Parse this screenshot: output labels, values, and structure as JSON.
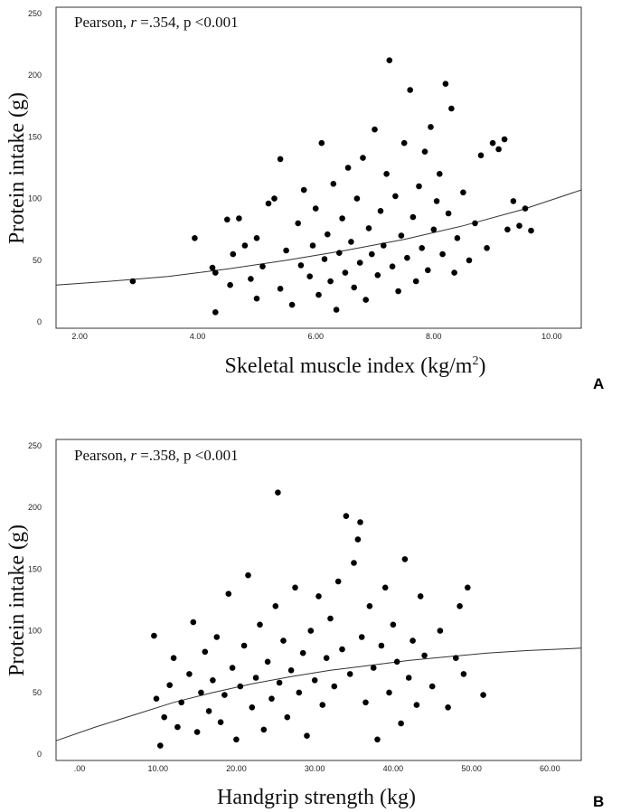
{
  "panels": [
    {
      "label": "A",
      "annotation": {
        "prefix": "Pearson, ",
        "r_symbol": "r",
        "value": " =.354, p <0.001"
      },
      "xlabel": "Skeletal muscle index (kg/m",
      "xlabel_sup": "2",
      "xlabel_suffix": ")",
      "ylabel": "Protein intake (g)"
    },
    {
      "label": "B",
      "annotation": {
        "prefix": "Pearson, ",
        "r_symbol": "r",
        "value": " =.358, p <0.001"
      },
      "xlabel": "Handgrip strength (kg)",
      "xlabel_sup": "",
      "xlabel_suffix": "",
      "ylabel": "Protein intake (g)"
    }
  ],
  "chart_data": [
    {
      "type": "scatter",
      "title": "",
      "xlabel": "Skeletal muscle index (kg/m2)",
      "ylabel": "Protein intake (g)",
      "xlim": [
        1.6,
        10.5
      ],
      "ylim": [
        -5,
        255
      ],
      "xticks": [
        "2.00",
        "4.00",
        "6.00",
        "8.00",
        "10.00"
      ],
      "xtick_values": [
        2,
        4,
        6,
        8,
        10
      ],
      "yticks": [
        "0",
        "50",
        "100",
        "150",
        "200",
        "250"
      ],
      "ytick_values": [
        0,
        50,
        100,
        150,
        200,
        250
      ],
      "correlation": {
        "method": "Pearson",
        "r": 0.354,
        "p": "<0.001"
      },
      "fit_line": {
        "x": [
          1.6,
          2.5,
          3.5,
          4.5,
          5.5,
          6.5,
          7.5,
          8.5,
          9.5,
          10.5
        ],
        "y": [
          30,
          33,
          37,
          43,
          50,
          58,
          67,
          78,
          91,
          107
        ]
      },
      "points": [
        {
          "x": 2.9,
          "y": 33
        },
        {
          "x": 3.95,
          "y": 68
        },
        {
          "x": 4.25,
          "y": 44
        },
        {
          "x": 4.3,
          "y": 40
        },
        {
          "x": 4.3,
          "y": 8
        },
        {
          "x": 4.5,
          "y": 83
        },
        {
          "x": 4.55,
          "y": 30
        },
        {
          "x": 4.6,
          "y": 55
        },
        {
          "x": 4.7,
          "y": 84
        },
        {
          "x": 4.8,
          "y": 62
        },
        {
          "x": 4.9,
          "y": 35
        },
        {
          "x": 5.0,
          "y": 19
        },
        {
          "x": 5.0,
          "y": 68
        },
        {
          "x": 5.1,
          "y": 45
        },
        {
          "x": 5.2,
          "y": 96
        },
        {
          "x": 5.3,
          "y": 100
        },
        {
          "x": 5.4,
          "y": 132
        },
        {
          "x": 5.4,
          "y": 27
        },
        {
          "x": 5.5,
          "y": 58
        },
        {
          "x": 5.6,
          "y": 14
        },
        {
          "x": 5.7,
          "y": 80
        },
        {
          "x": 5.75,
          "y": 46
        },
        {
          "x": 5.8,
          "y": 107
        },
        {
          "x": 5.9,
          "y": 37
        },
        {
          "x": 5.95,
          "y": 62
        },
        {
          "x": 6.0,
          "y": 92
        },
        {
          "x": 6.05,
          "y": 22
        },
        {
          "x": 6.1,
          "y": 145
        },
        {
          "x": 6.15,
          "y": 51
        },
        {
          "x": 6.2,
          "y": 71
        },
        {
          "x": 6.25,
          "y": 33
        },
        {
          "x": 6.3,
          "y": 112
        },
        {
          "x": 6.35,
          "y": 10
        },
        {
          "x": 6.4,
          "y": 56
        },
        {
          "x": 6.45,
          "y": 84
        },
        {
          "x": 6.5,
          "y": 40
        },
        {
          "x": 6.55,
          "y": 125
        },
        {
          "x": 6.6,
          "y": 65
        },
        {
          "x": 6.65,
          "y": 28
        },
        {
          "x": 6.7,
          "y": 100
        },
        {
          "x": 6.75,
          "y": 48
        },
        {
          "x": 6.8,
          "y": 133
        },
        {
          "x": 6.85,
          "y": 18
        },
        {
          "x": 6.9,
          "y": 76
        },
        {
          "x": 6.95,
          "y": 55
        },
        {
          "x": 7.0,
          "y": 156
        },
        {
          "x": 7.05,
          "y": 38
        },
        {
          "x": 7.1,
          "y": 90
        },
        {
          "x": 7.15,
          "y": 62
        },
        {
          "x": 7.2,
          "y": 120
        },
        {
          "x": 7.25,
          "y": 212
        },
        {
          "x": 7.3,
          "y": 45
        },
        {
          "x": 7.35,
          "y": 102
        },
        {
          "x": 7.4,
          "y": 25
        },
        {
          "x": 7.45,
          "y": 70
        },
        {
          "x": 7.5,
          "y": 145
        },
        {
          "x": 7.55,
          "y": 52
        },
        {
          "x": 7.6,
          "y": 188
        },
        {
          "x": 7.65,
          "y": 85
        },
        {
          "x": 7.7,
          "y": 33
        },
        {
          "x": 7.75,
          "y": 110
        },
        {
          "x": 7.8,
          "y": 60
        },
        {
          "x": 7.85,
          "y": 138
        },
        {
          "x": 7.9,
          "y": 42
        },
        {
          "x": 7.95,
          "y": 158
        },
        {
          "x": 8.0,
          "y": 75
        },
        {
          "x": 8.05,
          "y": 98
        },
        {
          "x": 8.1,
          "y": 120
        },
        {
          "x": 8.15,
          "y": 55
        },
        {
          "x": 8.2,
          "y": 193
        },
        {
          "x": 8.25,
          "y": 88
        },
        {
          "x": 8.3,
          "y": 173
        },
        {
          "x": 8.35,
          "y": 40
        },
        {
          "x": 8.4,
          "y": 68
        },
        {
          "x": 8.5,
          "y": 105
        },
        {
          "x": 8.6,
          "y": 50
        },
        {
          "x": 8.7,
          "y": 80
        },
        {
          "x": 8.8,
          "y": 135
        },
        {
          "x": 8.9,
          "y": 60
        },
        {
          "x": 9.0,
          "y": 145
        },
        {
          "x": 9.1,
          "y": 140
        },
        {
          "x": 9.2,
          "y": 148
        },
        {
          "x": 9.25,
          "y": 75
        },
        {
          "x": 9.35,
          "y": 98
        },
        {
          "x": 9.45,
          "y": 78
        },
        {
          "x": 9.55,
          "y": 92
        },
        {
          "x": 9.65,
          "y": 74
        }
      ]
    },
    {
      "type": "scatter",
      "title": "",
      "xlabel": "Handgrip strength (kg)",
      "ylabel": "Protein intake (g)",
      "xlim": [
        -3,
        64
      ],
      "ylim": [
        -5,
        255
      ],
      "xticks": [
        ".00",
        "10.00",
        "20.00",
        "30.00",
        "40.00",
        "50.00",
        "60.00"
      ],
      "xtick_values": [
        0,
        10,
        20,
        30,
        40,
        50,
        60
      ],
      "yticks": [
        "0",
        "50",
        "100",
        "150",
        "200",
        "250"
      ],
      "ytick_values": [
        0,
        50,
        100,
        150,
        200,
        250
      ],
      "correlation": {
        "method": "Pearson",
        "r": 0.358,
        "p": "<0.001"
      },
      "fit_line": {
        "x": [
          -3,
          2,
          7,
          12,
          17,
          22,
          27,
          32,
          37,
          42,
          47,
          52,
          57,
          64
        ],
        "y": [
          11,
          22,
          32,
          42,
          50,
          57,
          63,
          68,
          72,
          76,
          79,
          82,
          84,
          86
        ]
      },
      "points": [
        {
          "x": 9.5,
          "y": 96
        },
        {
          "x": 9.8,
          "y": 45
        },
        {
          "x": 10.3,
          "y": 7
        },
        {
          "x": 10.8,
          "y": 30
        },
        {
          "x": 11.5,
          "y": 56
        },
        {
          "x": 12.0,
          "y": 78
        },
        {
          "x": 12.5,
          "y": 22
        },
        {
          "x": 13.0,
          "y": 42
        },
        {
          "x": 14.0,
          "y": 65
        },
        {
          "x": 14.5,
          "y": 107
        },
        {
          "x": 15.0,
          "y": 18
        },
        {
          "x": 15.5,
          "y": 50
        },
        {
          "x": 16.0,
          "y": 83
        },
        {
          "x": 16.5,
          "y": 35
        },
        {
          "x": 17.0,
          "y": 60
        },
        {
          "x": 17.5,
          "y": 95
        },
        {
          "x": 18.0,
          "y": 26
        },
        {
          "x": 18.5,
          "y": 48
        },
        {
          "x": 19.0,
          "y": 130
        },
        {
          "x": 19.5,
          "y": 70
        },
        {
          "x": 20.0,
          "y": 12
        },
        {
          "x": 20.5,
          "y": 55
        },
        {
          "x": 21.0,
          "y": 88
        },
        {
          "x": 21.5,
          "y": 145
        },
        {
          "x": 22.0,
          "y": 38
        },
        {
          "x": 22.5,
          "y": 62
        },
        {
          "x": 23.0,
          "y": 105
        },
        {
          "x": 23.5,
          "y": 20
        },
        {
          "x": 24.0,
          "y": 75
        },
        {
          "x": 24.5,
          "y": 45
        },
        {
          "x": 25.0,
          "y": 120
        },
        {
          "x": 25.3,
          "y": 212
        },
        {
          "x": 25.5,
          "y": 58
        },
        {
          "x": 26.0,
          "y": 92
        },
        {
          "x": 26.5,
          "y": 30
        },
        {
          "x": 27.0,
          "y": 68
        },
        {
          "x": 27.5,
          "y": 135
        },
        {
          "x": 28.0,
          "y": 50
        },
        {
          "x": 28.5,
          "y": 82
        },
        {
          "x": 29.0,
          "y": 15
        },
        {
          "x": 29.5,
          "y": 100
        },
        {
          "x": 30.0,
          "y": 60
        },
        {
          "x": 30.5,
          "y": 128
        },
        {
          "x": 31.0,
          "y": 40
        },
        {
          "x": 31.5,
          "y": 78
        },
        {
          "x": 32.0,
          "y": 110
        },
        {
          "x": 32.5,
          "y": 55
        },
        {
          "x": 33.0,
          "y": 140
        },
        {
          "x": 33.5,
          "y": 85
        },
        {
          "x": 34.0,
          "y": 193
        },
        {
          "x": 34.5,
          "y": 65
        },
        {
          "x": 35.0,
          "y": 155
        },
        {
          "x": 35.5,
          "y": 174
        },
        {
          "x": 35.8,
          "y": 188
        },
        {
          "x": 36.0,
          "y": 95
        },
        {
          "x": 36.5,
          "y": 42
        },
        {
          "x": 37.0,
          "y": 120
        },
        {
          "x": 37.5,
          "y": 70
        },
        {
          "x": 38.0,
          "y": 12
        },
        {
          "x": 38.5,
          "y": 88
        },
        {
          "x": 39.0,
          "y": 135
        },
        {
          "x": 39.5,
          "y": 50
        },
        {
          "x": 40.0,
          "y": 105
        },
        {
          "x": 40.5,
          "y": 75
        },
        {
          "x": 41.0,
          "y": 25
        },
        {
          "x": 41.5,
          "y": 158
        },
        {
          "x": 42.0,
          "y": 62
        },
        {
          "x": 42.5,
          "y": 92
        },
        {
          "x": 43.0,
          "y": 40
        },
        {
          "x": 43.5,
          "y": 128
        },
        {
          "x": 44.0,
          "y": 80
        },
        {
          "x": 45.0,
          "y": 55
        },
        {
          "x": 46.0,
          "y": 100
        },
        {
          "x": 47.0,
          "y": 38
        },
        {
          "x": 48.0,
          "y": 78
        },
        {
          "x": 48.5,
          "y": 120
        },
        {
          "x": 49.0,
          "y": 65
        },
        {
          "x": 49.5,
          "y": 135
        },
        {
          "x": 51.5,
          "y": 48
        }
      ]
    }
  ]
}
